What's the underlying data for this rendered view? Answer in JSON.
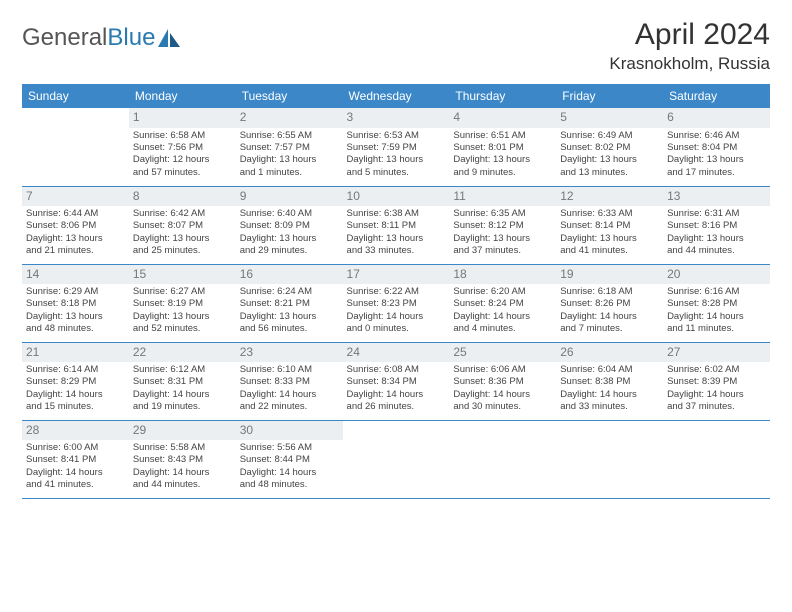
{
  "logo": {
    "text1": "General",
    "text2": "Blue"
  },
  "title": "April 2024",
  "location": "Krasnokholm, Russia",
  "colors": {
    "header_bg": "#3b87c8",
    "header_fg": "#ffffff",
    "daynum_bg": "#eceff1",
    "daynum_fg": "#777777",
    "row_border": "#3b87c8",
    "logo_blue": "#2a7ab0"
  },
  "weekdays": [
    "Sunday",
    "Monday",
    "Tuesday",
    "Wednesday",
    "Thursday",
    "Friday",
    "Saturday"
  ],
  "weeks": [
    [
      {
        "n": "",
        "sr": "",
        "ss": "",
        "d1": "",
        "d2": ""
      },
      {
        "n": "1",
        "sr": "Sunrise: 6:58 AM",
        "ss": "Sunset: 7:56 PM",
        "d1": "Daylight: 12 hours",
        "d2": "and 57 minutes."
      },
      {
        "n": "2",
        "sr": "Sunrise: 6:55 AM",
        "ss": "Sunset: 7:57 PM",
        "d1": "Daylight: 13 hours",
        "d2": "and 1 minutes."
      },
      {
        "n": "3",
        "sr": "Sunrise: 6:53 AM",
        "ss": "Sunset: 7:59 PM",
        "d1": "Daylight: 13 hours",
        "d2": "and 5 minutes."
      },
      {
        "n": "4",
        "sr": "Sunrise: 6:51 AM",
        "ss": "Sunset: 8:01 PM",
        "d1": "Daylight: 13 hours",
        "d2": "and 9 minutes."
      },
      {
        "n": "5",
        "sr": "Sunrise: 6:49 AM",
        "ss": "Sunset: 8:02 PM",
        "d1": "Daylight: 13 hours",
        "d2": "and 13 minutes."
      },
      {
        "n": "6",
        "sr": "Sunrise: 6:46 AM",
        "ss": "Sunset: 8:04 PM",
        "d1": "Daylight: 13 hours",
        "d2": "and 17 minutes."
      }
    ],
    [
      {
        "n": "7",
        "sr": "Sunrise: 6:44 AM",
        "ss": "Sunset: 8:06 PM",
        "d1": "Daylight: 13 hours",
        "d2": "and 21 minutes."
      },
      {
        "n": "8",
        "sr": "Sunrise: 6:42 AM",
        "ss": "Sunset: 8:07 PM",
        "d1": "Daylight: 13 hours",
        "d2": "and 25 minutes."
      },
      {
        "n": "9",
        "sr": "Sunrise: 6:40 AM",
        "ss": "Sunset: 8:09 PM",
        "d1": "Daylight: 13 hours",
        "d2": "and 29 minutes."
      },
      {
        "n": "10",
        "sr": "Sunrise: 6:38 AM",
        "ss": "Sunset: 8:11 PM",
        "d1": "Daylight: 13 hours",
        "d2": "and 33 minutes."
      },
      {
        "n": "11",
        "sr": "Sunrise: 6:35 AM",
        "ss": "Sunset: 8:12 PM",
        "d1": "Daylight: 13 hours",
        "d2": "and 37 minutes."
      },
      {
        "n": "12",
        "sr": "Sunrise: 6:33 AM",
        "ss": "Sunset: 8:14 PM",
        "d1": "Daylight: 13 hours",
        "d2": "and 41 minutes."
      },
      {
        "n": "13",
        "sr": "Sunrise: 6:31 AM",
        "ss": "Sunset: 8:16 PM",
        "d1": "Daylight: 13 hours",
        "d2": "and 44 minutes."
      }
    ],
    [
      {
        "n": "14",
        "sr": "Sunrise: 6:29 AM",
        "ss": "Sunset: 8:18 PM",
        "d1": "Daylight: 13 hours",
        "d2": "and 48 minutes."
      },
      {
        "n": "15",
        "sr": "Sunrise: 6:27 AM",
        "ss": "Sunset: 8:19 PM",
        "d1": "Daylight: 13 hours",
        "d2": "and 52 minutes."
      },
      {
        "n": "16",
        "sr": "Sunrise: 6:24 AM",
        "ss": "Sunset: 8:21 PM",
        "d1": "Daylight: 13 hours",
        "d2": "and 56 minutes."
      },
      {
        "n": "17",
        "sr": "Sunrise: 6:22 AM",
        "ss": "Sunset: 8:23 PM",
        "d1": "Daylight: 14 hours",
        "d2": "and 0 minutes."
      },
      {
        "n": "18",
        "sr": "Sunrise: 6:20 AM",
        "ss": "Sunset: 8:24 PM",
        "d1": "Daylight: 14 hours",
        "d2": "and 4 minutes."
      },
      {
        "n": "19",
        "sr": "Sunrise: 6:18 AM",
        "ss": "Sunset: 8:26 PM",
        "d1": "Daylight: 14 hours",
        "d2": "and 7 minutes."
      },
      {
        "n": "20",
        "sr": "Sunrise: 6:16 AM",
        "ss": "Sunset: 8:28 PM",
        "d1": "Daylight: 14 hours",
        "d2": "and 11 minutes."
      }
    ],
    [
      {
        "n": "21",
        "sr": "Sunrise: 6:14 AM",
        "ss": "Sunset: 8:29 PM",
        "d1": "Daylight: 14 hours",
        "d2": "and 15 minutes."
      },
      {
        "n": "22",
        "sr": "Sunrise: 6:12 AM",
        "ss": "Sunset: 8:31 PM",
        "d1": "Daylight: 14 hours",
        "d2": "and 19 minutes."
      },
      {
        "n": "23",
        "sr": "Sunrise: 6:10 AM",
        "ss": "Sunset: 8:33 PM",
        "d1": "Daylight: 14 hours",
        "d2": "and 22 minutes."
      },
      {
        "n": "24",
        "sr": "Sunrise: 6:08 AM",
        "ss": "Sunset: 8:34 PM",
        "d1": "Daylight: 14 hours",
        "d2": "and 26 minutes."
      },
      {
        "n": "25",
        "sr": "Sunrise: 6:06 AM",
        "ss": "Sunset: 8:36 PM",
        "d1": "Daylight: 14 hours",
        "d2": "and 30 minutes."
      },
      {
        "n": "26",
        "sr": "Sunrise: 6:04 AM",
        "ss": "Sunset: 8:38 PM",
        "d1": "Daylight: 14 hours",
        "d2": "and 33 minutes."
      },
      {
        "n": "27",
        "sr": "Sunrise: 6:02 AM",
        "ss": "Sunset: 8:39 PM",
        "d1": "Daylight: 14 hours",
        "d2": "and 37 minutes."
      }
    ],
    [
      {
        "n": "28",
        "sr": "Sunrise: 6:00 AM",
        "ss": "Sunset: 8:41 PM",
        "d1": "Daylight: 14 hours",
        "d2": "and 41 minutes."
      },
      {
        "n": "29",
        "sr": "Sunrise: 5:58 AM",
        "ss": "Sunset: 8:43 PM",
        "d1": "Daylight: 14 hours",
        "d2": "and 44 minutes."
      },
      {
        "n": "30",
        "sr": "Sunrise: 5:56 AM",
        "ss": "Sunset: 8:44 PM",
        "d1": "Daylight: 14 hours",
        "d2": "and 48 minutes."
      },
      {
        "n": "",
        "sr": "",
        "ss": "",
        "d1": "",
        "d2": ""
      },
      {
        "n": "",
        "sr": "",
        "ss": "",
        "d1": "",
        "d2": ""
      },
      {
        "n": "",
        "sr": "",
        "ss": "",
        "d1": "",
        "d2": ""
      },
      {
        "n": "",
        "sr": "",
        "ss": "",
        "d1": "",
        "d2": ""
      }
    ]
  ]
}
